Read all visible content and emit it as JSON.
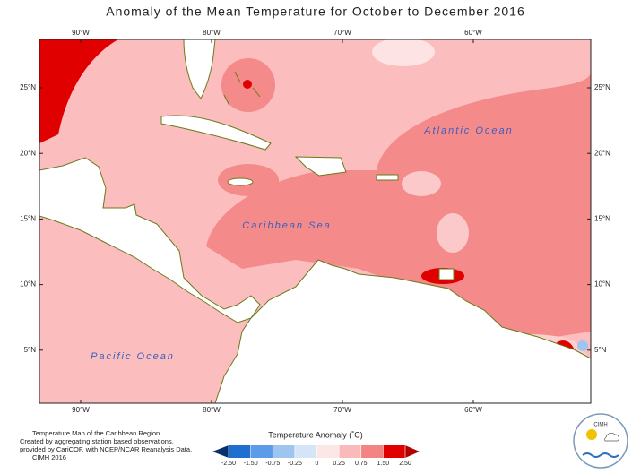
{
  "title": "Anomaly of the Mean Temperature for October to December 2016",
  "lon_labels": [
    "90°W",
    "80°W",
    "70°W",
    "60°W"
  ],
  "lat_labels": [
    "25°N",
    "20°N",
    "15°N",
    "10°N",
    "5°N"
  ],
  "places": [
    "Atlantic Ocean",
    "Caribbean Sea",
    "Pacific Ocean"
  ],
  "legend": {
    "title": "Temperature Anomaly (˚C)",
    "ticks": [
      {
        "value": -2.5,
        "label": "-2.50"
      },
      {
        "value": -1.5,
        "label": "-1.50"
      },
      {
        "value": -0.75,
        "label": "-0.75"
      },
      {
        "value": -0.25,
        "label": "-0.25"
      },
      0,
      {
        "value": 0.25,
        "label": "0.25"
      },
      {
        "value": 0.75,
        "label": "0.75"
      },
      {
        "value": 1.5,
        "label": "1.50"
      },
      {
        "value": 2.5,
        "label": "2.50"
      }
    ],
    "colors": [
      "#08306b",
      "#1f6fd1",
      "#5b9be8",
      "#9ec4f0",
      "#d6e4f7",
      "#fde6e6",
      "#fbbaba",
      "#f48484",
      "#e00000",
      "#b00000"
    ]
  },
  "caption": [
    "Temperature Map of the Caribbean Region.",
    "Created by aggregating station based observations,",
    "provided by CariCOF, with NCEP/NCAR Reanalysis Data.",
    "CIMH 2016"
  ],
  "logo": "CIMH"
}
